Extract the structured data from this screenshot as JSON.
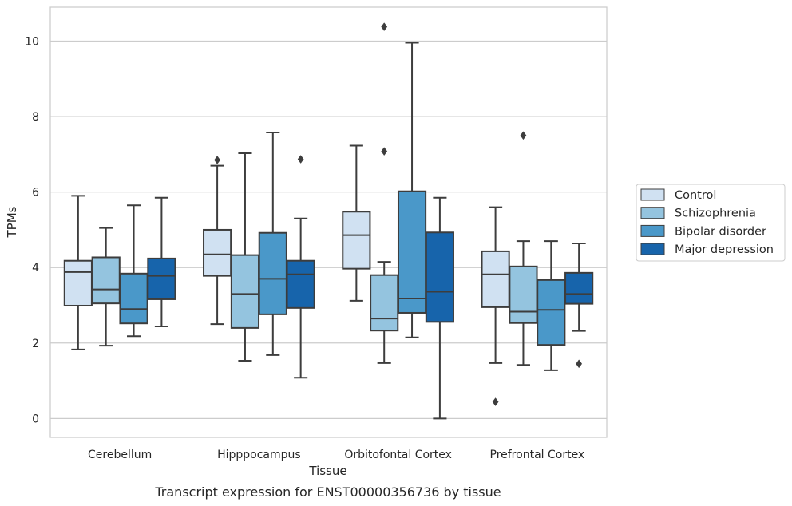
{
  "chart_data": {
    "type": "box",
    "title": "",
    "caption": "Transcript expression for ENST00000356736 by tissue",
    "xlabel": "Tissue",
    "ylabel": "TPMs",
    "ylim": [
      -0.5,
      10.9
    ],
    "yticks": [
      0,
      2,
      4,
      6,
      8,
      10
    ],
    "grid": true,
    "legend_position": "right",
    "categories": [
      "Cerebellum",
      "Hipppocampus",
      "Orbitofontal Cortex",
      "Prefrontal Cortex"
    ],
    "series": [
      {
        "name": "Control",
        "color": "#d0e1f2",
        "boxes": [
          {
            "whisker_low": 1.83,
            "q1": 2.99,
            "median": 3.88,
            "q3": 4.18,
            "whisker_high": 5.9,
            "outliers": []
          },
          {
            "whisker_low": 2.5,
            "q1": 3.78,
            "median": 4.35,
            "q3": 5.0,
            "whisker_high": 6.7,
            "outliers": [
              6.85
            ]
          },
          {
            "whisker_low": 3.12,
            "q1": 3.97,
            "median": 4.86,
            "q3": 5.48,
            "whisker_high": 7.23,
            "outliers": []
          },
          {
            "whisker_low": 1.47,
            "q1": 2.95,
            "median": 3.82,
            "q3": 4.43,
            "whisker_high": 5.6,
            "outliers": [
              0.44
            ]
          }
        ]
      },
      {
        "name": "Schizophrenia",
        "color": "#94c4df",
        "boxes": [
          {
            "whisker_low": 1.93,
            "q1": 3.05,
            "median": 3.42,
            "q3": 4.27,
            "whisker_high": 5.05,
            "outliers": []
          },
          {
            "whisker_low": 1.53,
            "q1": 2.4,
            "median": 3.3,
            "q3": 4.33,
            "whisker_high": 7.03,
            "outliers": []
          },
          {
            "whisker_low": 1.47,
            "q1": 2.33,
            "median": 2.65,
            "q3": 3.8,
            "whisker_high": 4.15,
            "outliers": [
              10.38,
              7.08
            ]
          },
          {
            "whisker_low": 1.42,
            "q1": 2.53,
            "median": 2.83,
            "q3": 4.03,
            "whisker_high": 4.7,
            "outliers": [
              7.5
            ]
          }
        ]
      },
      {
        "name": "Bipolar disorder",
        "color": "#4a98c9",
        "boxes": [
          {
            "whisker_low": 2.18,
            "q1": 2.52,
            "median": 2.9,
            "q3": 3.84,
            "whisker_high": 5.65,
            "outliers": []
          },
          {
            "whisker_low": 1.68,
            "q1": 2.76,
            "median": 3.7,
            "q3": 4.92,
            "whisker_high": 7.58,
            "outliers": []
          },
          {
            "whisker_low": 2.15,
            "q1": 2.8,
            "median": 3.18,
            "q3": 6.02,
            "whisker_high": 9.96,
            "outliers": []
          },
          {
            "whisker_low": 1.28,
            "q1": 1.95,
            "median": 2.88,
            "q3": 3.67,
            "whisker_high": 4.7,
            "outliers": []
          }
        ]
      },
      {
        "name": "Major depression",
        "color": "#1764ab",
        "boxes": [
          {
            "whisker_low": 2.44,
            "q1": 3.16,
            "median": 3.78,
            "q3": 4.24,
            "whisker_high": 5.85,
            "outliers": []
          },
          {
            "whisker_low": 1.08,
            "q1": 2.93,
            "median": 3.82,
            "q3": 4.18,
            "whisker_high": 5.3,
            "outliers": [
              6.87
            ]
          },
          {
            "whisker_low": 0.0,
            "q1": 2.56,
            "median": 3.36,
            "q3": 4.93,
            "whisker_high": 5.85,
            "outliers": []
          },
          {
            "whisker_low": 2.32,
            "q1": 3.04,
            "median": 3.3,
            "q3": 3.86,
            "whisker_high": 4.64,
            "outliers": [
              1.45
            ]
          }
        ]
      }
    ]
  }
}
